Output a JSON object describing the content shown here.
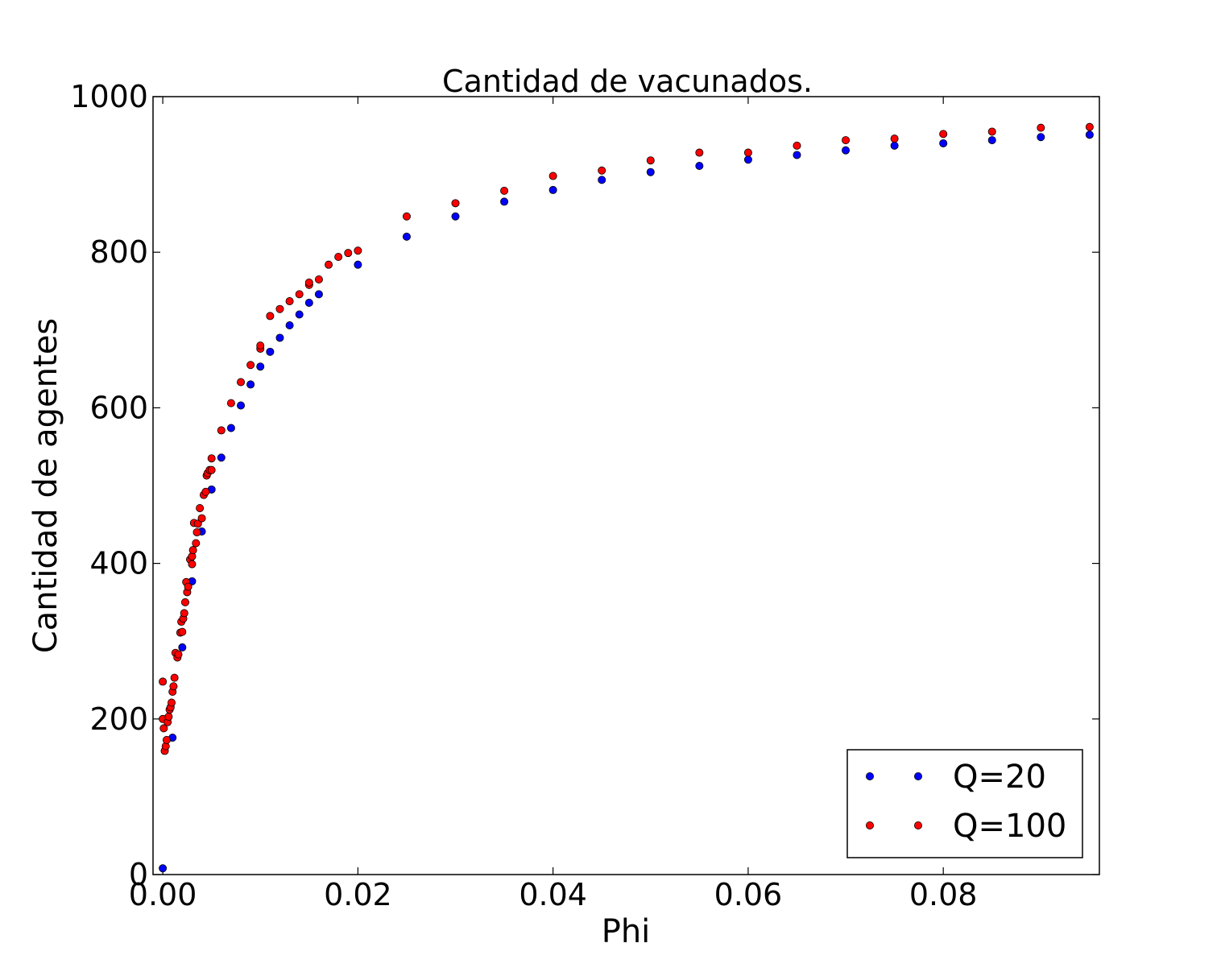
{
  "chart_data": {
    "type": "scatter",
    "title": "Cantidad de vacunados.",
    "xlabel": "Phi",
    "ylabel": "Cantidad de agentes",
    "xlim": [
      -0.001,
      0.096
    ],
    "ylim": [
      0,
      1000
    ],
    "xticks": [
      "0.00",
      "0.02",
      "0.04",
      "0.06",
      "0.08"
    ],
    "yticks": [
      "0",
      "200",
      "400",
      "600",
      "800",
      "1000"
    ],
    "grid": false,
    "legend_position": "lower-right",
    "series": [
      {
        "name": "Q=20",
        "color": "#0000ff",
        "points": [
          [
            0.0,
            8
          ],
          [
            0.001,
            176
          ],
          [
            0.002,
            292
          ],
          [
            0.003,
            377
          ],
          [
            0.004,
            441
          ],
          [
            0.005,
            495
          ],
          [
            0.006,
            536
          ],
          [
            0.007,
            574
          ],
          [
            0.008,
            603
          ],
          [
            0.009,
            630
          ],
          [
            0.01,
            653
          ],
          [
            0.011,
            672
          ],
          [
            0.012,
            690
          ],
          [
            0.013,
            706
          ],
          [
            0.014,
            720
          ],
          [
            0.015,
            735
          ],
          [
            0.016,
            746
          ],
          [
            0.02,
            784
          ],
          [
            0.025,
            820
          ],
          [
            0.03,
            846
          ],
          [
            0.035,
            865
          ],
          [
            0.04,
            880
          ],
          [
            0.045,
            893
          ],
          [
            0.05,
            903
          ],
          [
            0.055,
            911
          ],
          [
            0.06,
            919
          ],
          [
            0.065,
            925
          ],
          [
            0.07,
            931
          ],
          [
            0.075,
            937
          ],
          [
            0.08,
            940
          ],
          [
            0.085,
            944
          ],
          [
            0.09,
            948
          ],
          [
            0.095,
            951
          ]
        ]
      },
      {
        "name": "Q=100",
        "color": "#ff0000",
        "points": [
          [
            0.0,
            248
          ],
          [
            0.0,
            200
          ],
          [
            0.0001,
            188
          ],
          [
            0.0002,
            159
          ],
          [
            0.0003,
            165
          ],
          [
            0.0004,
            173
          ],
          [
            0.0005,
            196
          ],
          [
            0.0006,
            203
          ],
          [
            0.0007,
            212
          ],
          [
            0.0008,
            215
          ],
          [
            0.0009,
            221
          ],
          [
            0.001,
            235
          ],
          [
            0.0011,
            242
          ],
          [
            0.0012,
            253
          ],
          [
            0.0013,
            285
          ],
          [
            0.0015,
            279
          ],
          [
            0.0016,
            283
          ],
          [
            0.0018,
            311
          ],
          [
            0.0019,
            325
          ],
          [
            0.002,
            312
          ],
          [
            0.0021,
            329
          ],
          [
            0.0022,
            336
          ],
          [
            0.0023,
            350
          ],
          [
            0.0024,
            376
          ],
          [
            0.0025,
            363
          ],
          [
            0.0026,
            370
          ],
          [
            0.0028,
            405
          ],
          [
            0.003,
            399
          ],
          [
            0.003,
            409
          ],
          [
            0.0031,
            417
          ],
          [
            0.0032,
            452
          ],
          [
            0.0034,
            426
          ],
          [
            0.0035,
            440
          ],
          [
            0.0036,
            451
          ],
          [
            0.0038,
            471
          ],
          [
            0.004,
            458
          ],
          [
            0.0042,
            488
          ],
          [
            0.0044,
            492
          ],
          [
            0.0045,
            513
          ],
          [
            0.0046,
            516
          ],
          [
            0.0048,
            520
          ],
          [
            0.005,
            520
          ],
          [
            0.005,
            535
          ],
          [
            0.006,
            571
          ],
          [
            0.007,
            606
          ],
          [
            0.008,
            633
          ],
          [
            0.009,
            655
          ],
          [
            0.01,
            676
          ],
          [
            0.01,
            680
          ],
          [
            0.011,
            718
          ],
          [
            0.012,
            727
          ],
          [
            0.013,
            737
          ],
          [
            0.014,
            746
          ],
          [
            0.015,
            758
          ],
          [
            0.015,
            761
          ],
          [
            0.016,
            765
          ],
          [
            0.017,
            784
          ],
          [
            0.018,
            794
          ],
          [
            0.019,
            799
          ],
          [
            0.02,
            802
          ],
          [
            0.025,
            846
          ],
          [
            0.03,
            863
          ],
          [
            0.035,
            879
          ],
          [
            0.04,
            898
          ],
          [
            0.045,
            905
          ],
          [
            0.05,
            918
          ],
          [
            0.055,
            928
          ],
          [
            0.06,
            928
          ],
          [
            0.065,
            937
          ],
          [
            0.07,
            944
          ],
          [
            0.075,
            946
          ],
          [
            0.08,
            952
          ],
          [
            0.085,
            955
          ],
          [
            0.09,
            960
          ],
          [
            0.095,
            961
          ]
        ]
      }
    ]
  }
}
